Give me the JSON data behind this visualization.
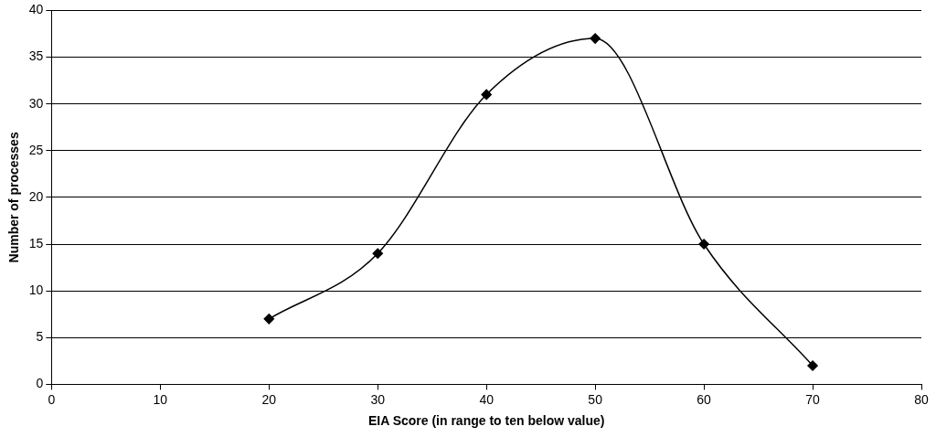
{
  "chart_data": {
    "type": "line",
    "xlabel": "EIA Score (in range to ten below value)",
    "ylabel": "Number of processes",
    "x": [
      20,
      30,
      40,
      50,
      60,
      70
    ],
    "series": [
      {
        "color": "#000000",
        "values": [
          7,
          14,
          31,
          37,
          15,
          2
        ]
      }
    ],
    "xlim": [
      0,
      80
    ],
    "xticks": [
      0,
      10,
      20,
      30,
      40,
      50,
      60,
      70,
      80
    ],
    "ylim": [
      0,
      40
    ],
    "yticks": [
      0,
      5,
      10,
      15,
      20,
      25,
      30,
      35,
      40
    ],
    "grid": "y",
    "legend": false,
    "marker": "diamond",
    "line_style": "solid"
  }
}
